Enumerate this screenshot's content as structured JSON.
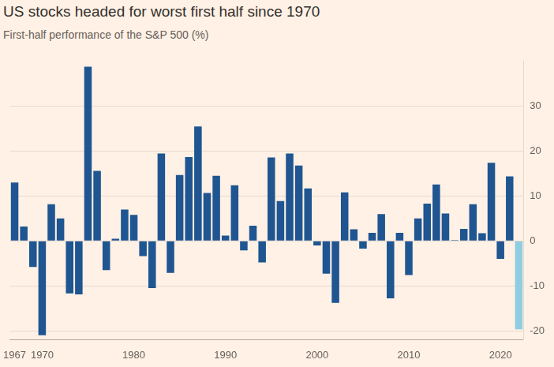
{
  "chart_data": {
    "type": "bar",
    "title": "US stocks headed for worst first half since 1970",
    "subtitle": "First-half performance of the S&P 500 (%)",
    "categories": [
      "1967",
      null,
      null,
      "1970",
      null,
      null,
      null,
      null,
      null,
      null,
      null,
      null,
      null,
      "1980",
      null,
      null,
      null,
      null,
      null,
      null,
      null,
      null,
      null,
      "1990",
      null,
      null,
      null,
      null,
      null,
      null,
      null,
      null,
      null,
      "2000",
      null,
      null,
      null,
      null,
      null,
      null,
      null,
      null,
      null,
      "2010",
      null,
      null,
      null,
      null,
      null,
      null,
      null,
      null,
      null,
      "2020",
      null,
      null
    ],
    "values": [
      13.0,
      3.2,
      -5.8,
      -21.0,
      8.2,
      5.0,
      -11.7,
      -11.9,
      38.8,
      15.6,
      -6.5,
      0.5,
      7.0,
      5.8,
      -3.4,
      -10.5,
      19.5,
      -7.1,
      14.7,
      18.7,
      25.5,
      10.7,
      14.5,
      1.2,
      12.4,
      -2.1,
      3.4,
      -4.8,
      18.6,
      8.9,
      19.5,
      16.8,
      11.7,
      -1.0,
      -7.3,
      -13.8,
      10.8,
      2.6,
      -1.7,
      1.8,
      6.0,
      -12.8,
      1.8,
      -7.6,
      5.0,
      8.3,
      12.6,
      6.1,
      0.2,
      2.7,
      8.2,
      1.7,
      17.4,
      -4.0,
      14.4,
      -19.7
    ],
    "colors": [
      "#1f5591",
      "#1f5591",
      "#1f5591",
      "#1f5591",
      "#1f5591",
      "#1f5591",
      "#1f5591",
      "#1f5591",
      "#1f5591",
      "#1f5591",
      "#1f5591",
      "#1f5591",
      "#1f5591",
      "#1f5591",
      "#1f5591",
      "#1f5591",
      "#1f5591",
      "#1f5591",
      "#1f5591",
      "#1f5591",
      "#1f5591",
      "#1f5591",
      "#1f5591",
      "#1f5591",
      "#1f5591",
      "#1f5591",
      "#1f5591",
      "#1f5591",
      "#1f5591",
      "#1f5591",
      "#1f5591",
      "#1f5591",
      "#1f5591",
      "#1f5591",
      "#1f5591",
      "#1f5591",
      "#1f5591",
      "#1f5591",
      "#1f5591",
      "#1f5591",
      "#1f5591",
      "#1f5591",
      "#1f5591",
      "#1f5591",
      "#1f5591",
      "#1f5591",
      "#1f5591",
      "#1f5591",
      "#1f5591",
      "#1f5591",
      "#1f5591",
      "#1f5591",
      "#1f5591",
      "#1f5591",
      "#1f5591",
      "#8fcde3"
    ],
    "ylim": [
      -22,
      40
    ],
    "yticks": [
      -20,
      -10,
      0,
      10,
      20,
      30
    ],
    "grid": true
  }
}
